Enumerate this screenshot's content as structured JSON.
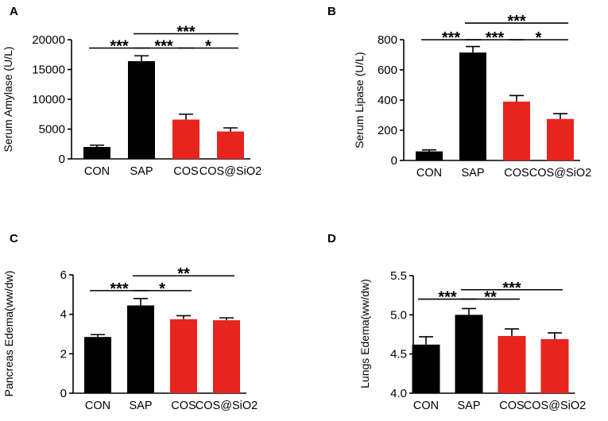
{
  "chart_data": [
    {
      "type": "bar",
      "panel": "A",
      "ylabel": "Serum Amylase (U/L)",
      "categories": [
        "CON",
        "SAP",
        "COS",
        "COS@SiO2"
      ],
      "values": [
        2000,
        16400,
        6600,
        4600
      ],
      "errors": [
        300,
        900,
        900,
        600
      ],
      "colors": [
        "#000000",
        "#000000",
        "#e8241f",
        "#e8241f"
      ],
      "ylim": [
        0,
        20000
      ],
      "yticks": [
        {
          "value": 0,
          "label": "0"
        },
        {
          "value": 5000,
          "label": "5000"
        },
        {
          "value": 10000,
          "label": "10000"
        },
        {
          "value": 15000,
          "label": "15000"
        },
        {
          "value": 20000,
          "label": "20000"
        }
      ],
      "annotations": [
        {
          "from": 0,
          "to": 1,
          "y": 18600,
          "label": "***"
        },
        {
          "from": 1,
          "to": 2,
          "y": 18600,
          "label": "***"
        },
        {
          "from": 2,
          "to": 3,
          "y": 18600,
          "label": "*"
        },
        {
          "from": 1,
          "to": 3,
          "y": 21000,
          "label": "***"
        }
      ]
    },
    {
      "type": "bar",
      "panel": "B",
      "ylabel": "Serum Lipase (U/L)",
      "categories": [
        "CON",
        "SAP",
        "COS",
        "COS@SiO2"
      ],
      "values": [
        60,
        715,
        390,
        275
      ],
      "errors": [
        10,
        40,
        40,
        35
      ],
      "colors": [
        "#000000",
        "#000000",
        "#e8241f",
        "#e8241f"
      ],
      "ylim": [
        0,
        800
      ],
      "yticks": [
        {
          "value": 0,
          "label": "0"
        },
        {
          "value": 200,
          "label": "200"
        },
        {
          "value": 400,
          "label": "400"
        },
        {
          "value": 600,
          "label": "600"
        },
        {
          "value": 800,
          "label": "800"
        }
      ],
      "annotations": [
        {
          "from": 0,
          "to": 1,
          "y": 800,
          "label": "***"
        },
        {
          "from": 1,
          "to": 2,
          "y": 800,
          "label": "***"
        },
        {
          "from": 2,
          "to": 3,
          "y": 800,
          "label": "*"
        },
        {
          "from": 1,
          "to": 3,
          "y": 910,
          "label": "***"
        }
      ]
    },
    {
      "type": "bar",
      "panel": "C",
      "ylabel": "Pancreas Edema(ww/dw)",
      "categories": [
        "CON",
        "SAP",
        "COS",
        "COS@SiO2"
      ],
      "values": [
        2.85,
        4.45,
        3.75,
        3.7
      ],
      "errors": [
        0.12,
        0.35,
        0.18,
        0.12
      ],
      "colors": [
        "#000000",
        "#000000",
        "#e8241f",
        "#e8241f"
      ],
      "ylim": [
        0,
        6
      ],
      "yticks": [
        {
          "value": 0,
          "label": "0"
        },
        {
          "value": 2,
          "label": "2"
        },
        {
          "value": 4,
          "label": "4"
        },
        {
          "value": 6,
          "label": "6"
        }
      ],
      "annotations": [
        {
          "from": 0,
          "to": 1,
          "y": 5.2,
          "label": "***"
        },
        {
          "from": 1,
          "to": 2,
          "y": 5.2,
          "label": "*"
        },
        {
          "from": 1,
          "to": 3,
          "y": 5.95,
          "label": "**"
        }
      ]
    },
    {
      "type": "bar",
      "panel": "D",
      "ylabel": "Lungs Edema(ww/dw)",
      "categories": [
        "CON",
        "SAP",
        "COS",
        "COS@SiO2"
      ],
      "values": [
        4.62,
        5.0,
        4.73,
        4.69
      ],
      "errors": [
        0.1,
        0.08,
        0.09,
        0.08
      ],
      "colors": [
        "#000000",
        "#000000",
        "#e8241f",
        "#e8241f"
      ],
      "ylim": [
        4.0,
        5.5
      ],
      "yticks": [
        {
          "value": 4.0,
          "label": "4.0"
        },
        {
          "value": 4.5,
          "label": "4.5"
        },
        {
          "value": 5.0,
          "label": "5.0"
        },
        {
          "value": 5.5,
          "label": "5.5"
        }
      ],
      "annotations": [
        {
          "from": 0,
          "to": 1,
          "y": 5.2,
          "label": "***"
        },
        {
          "from": 1,
          "to": 2,
          "y": 5.2,
          "label": "**"
        },
        {
          "from": 1,
          "to": 3,
          "y": 5.32,
          "label": "***"
        }
      ]
    }
  ]
}
